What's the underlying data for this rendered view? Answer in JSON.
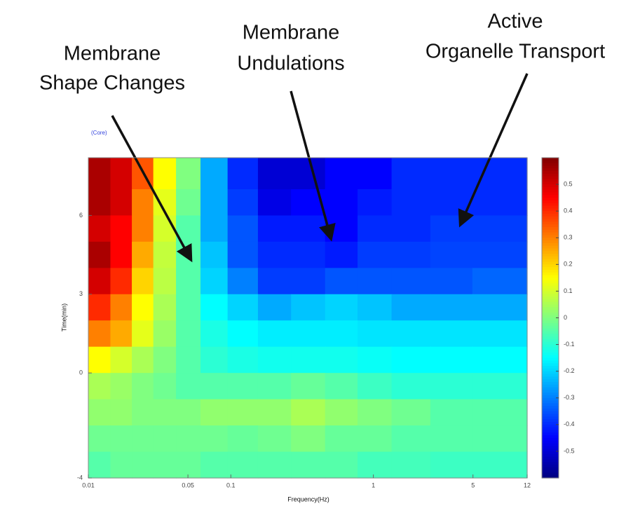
{
  "chart_data": {
    "type": "heatmap",
    "annotations": [
      {
        "lines": [
          "Membrane",
          "Shape Changes"
        ]
      },
      {
        "lines": [
          "Membrane",
          "Undulations"
        ]
      },
      {
        "lines": [
          "Active",
          "Organelle Transport"
        ]
      }
    ],
    "corner_label": "(Core)",
    "xlabel": "Frequency(Hz)",
    "ylabel": "Time(min)",
    "xscale": "log",
    "colormap": "jet",
    "xlim": [
      0.01,
      12
    ],
    "xticks": [
      0.01,
      0.05,
      0.1,
      1,
      5,
      12
    ],
    "ylim": [
      -4,
      8.2
    ],
    "yticks": [
      -4,
      0,
      3,
      6
    ],
    "zlim": [
      -0.6,
      0.6
    ],
    "zticks": [
      0.5,
      0.4,
      0.3,
      0.2,
      0.1,
      0,
      -0.1,
      -0.2,
      -0.3,
      -0.4,
      -0.5
    ],
    "x": [
      0.012,
      0.017,
      0.024,
      0.034,
      0.05,
      0.075,
      0.12,
      0.2,
      0.35,
      0.6,
      1,
      1.8,
      3.5,
      7
    ],
    "y": [
      7.5,
      6.5,
      5.5,
      4.5,
      3.5,
      2.5,
      1.5,
      0.5,
      -0.5,
      -1.5,
      -2.5,
      -3.5
    ],
    "z": [
      [
        0.55,
        0.5,
        0.35,
        0.15,
        0.0,
        -0.25,
        -0.4,
        -0.5,
        -0.5,
        -0.45,
        -0.45,
        -0.4,
        -0.4,
        -0.4
      ],
      [
        0.55,
        0.5,
        0.3,
        0.12,
        -0.02,
        -0.25,
        -0.38,
        -0.48,
        -0.45,
        -0.45,
        -0.42,
        -0.4,
        -0.4,
        -0.4
      ],
      [
        0.5,
        0.45,
        0.3,
        0.1,
        -0.05,
        -0.25,
        -0.35,
        -0.42,
        -0.42,
        -0.45,
        -0.4,
        -0.4,
        -0.38,
        -0.38
      ],
      [
        0.55,
        0.45,
        0.25,
        0.08,
        -0.05,
        -0.22,
        -0.35,
        -0.4,
        -0.4,
        -0.42,
        -0.38,
        -0.38,
        -0.37,
        -0.37
      ],
      [
        0.5,
        0.4,
        0.2,
        0.07,
        -0.05,
        -0.2,
        -0.3,
        -0.38,
        -0.38,
        -0.35,
        -0.35,
        -0.35,
        -0.35,
        -0.33
      ],
      [
        0.4,
        0.3,
        0.15,
        0.05,
        -0.05,
        -0.15,
        -0.2,
        -0.25,
        -0.22,
        -0.2,
        -0.22,
        -0.25,
        -0.25,
        -0.25
      ],
      [
        0.3,
        0.25,
        0.12,
        0.03,
        -0.05,
        -0.12,
        -0.15,
        -0.17,
        -0.17,
        -0.17,
        -0.18,
        -0.18,
        -0.18,
        -0.18
      ],
      [
        0.15,
        0.1,
        0.05,
        0.0,
        -0.05,
        -0.1,
        -0.12,
        -0.13,
        -0.13,
        -0.13,
        -0.14,
        -0.15,
        -0.15,
        -0.15
      ],
      [
        0.05,
        0.03,
        0.0,
        -0.02,
        -0.05,
        -0.05,
        -0.05,
        -0.05,
        -0.03,
        -0.05,
        -0.08,
        -0.1,
        -0.1,
        -0.1
      ],
      [
        0.02,
        0.02,
        0.0,
        0.0,
        0.0,
        0.02,
        0.02,
        0.02,
        0.05,
        0.02,
        0.0,
        -0.02,
        -0.05,
        -0.05
      ],
      [
        -0.02,
        -0.02,
        -0.02,
        -0.02,
        -0.02,
        -0.02,
        -0.03,
        -0.02,
        0.0,
        -0.03,
        -0.03,
        -0.05,
        -0.05,
        -0.05
      ],
      [
        -0.05,
        -0.03,
        -0.03,
        -0.03,
        -0.03,
        -0.05,
        -0.05,
        -0.05,
        -0.05,
        -0.05,
        -0.07,
        -0.07,
        -0.08,
        -0.08
      ]
    ]
  }
}
